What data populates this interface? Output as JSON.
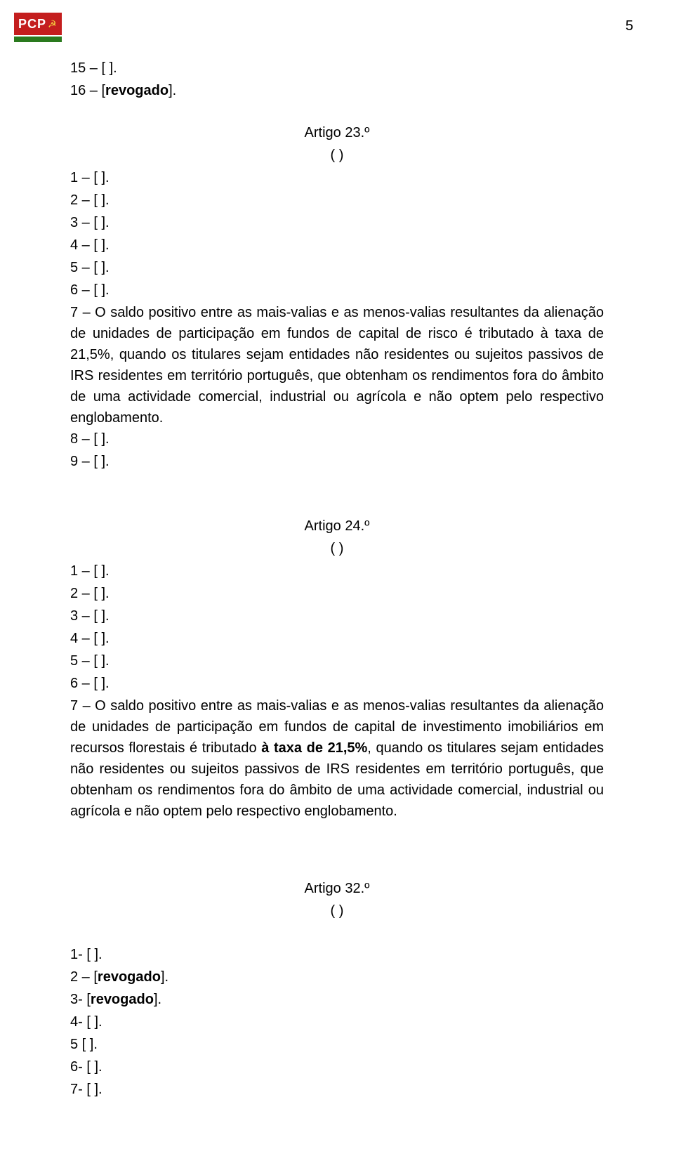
{
  "page": {
    "number": "5",
    "logo_text": "PCP",
    "logo_symbol": "☭"
  },
  "colors": {
    "logo_top": "#c41e1e",
    "logo_bottom": "#2a7a1e",
    "logo_text": "#ffffff",
    "logo_symbol": "#f5d040",
    "text": "#000000",
    "background": "#ffffff"
  },
  "typography": {
    "body_fontsize": 20,
    "line_height": 1.5,
    "font_family": "Arial"
  },
  "block1": {
    "lines": [
      "15 – [ ].",
      "16 – [revogado]."
    ],
    "bold_idx": [
      1
    ]
  },
  "article23": {
    "title": "Artigo 23.º",
    "ellipsis": "( )",
    "lines_before": [
      "1 – [ ].",
      "2 – [ ].",
      "3 – [ ].",
      "4 – [ ].",
      "5 – [ ].",
      "6 – [ ]."
    ],
    "para7": "7 – O saldo positivo entre as mais-valias e as menos-valias resultantes da alienação de unidades de participação em fundos de capital de risco é tributado à taxa de 21,5%, quando os titulares sejam entidades não residentes ou sujeitos passivos de IRS residentes em território português, que obtenham os rendimentos fora do âmbito de uma actividade comercial, industrial ou agrícola e não optem pelo respectivo englobamento.",
    "lines_after": [
      "8 – [ ].",
      "9 – [ ]."
    ]
  },
  "article24": {
    "title": "Artigo 24.º",
    "ellipsis": "( )",
    "lines_before": [
      "1 – [ ].",
      "2 – [ ].",
      "3 – [ ].",
      "4 – [ ].",
      "5 – [ ].",
      "6 – [ ]."
    ],
    "para7_a": "7 – O saldo positivo entre as mais-valias e as menos-valias resultantes da alienação de unidades de participação em fundos de capital de investimento imobiliários em recursos florestais é tributado ",
    "para7_bold": "à taxa de 21,5%",
    "para7_b": ", quando os titulares sejam entidades não residentes ou sujeitos passivos de IRS residentes em território português, que obtenham os rendimentos fora do âmbito de uma actividade comercial, industrial ou agrícola e não optem pelo respectivo englobamento."
  },
  "article32": {
    "title": "Artigo 32.º",
    "ellipsis": "( )",
    "lines": [
      "1- [ ].",
      "2 – [revogado].",
      "3- [revogado].",
      "4- [ ].",
      "5  [ ].",
      "6- [ ].",
      "7- [ ]."
    ],
    "bold_idx": [
      1,
      2
    ]
  }
}
